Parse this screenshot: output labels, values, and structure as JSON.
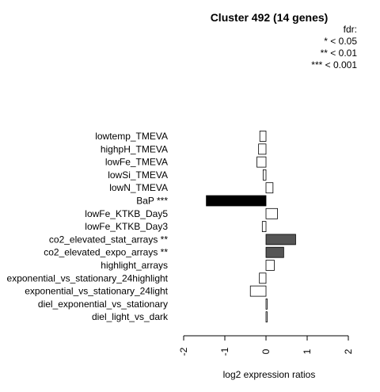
{
  "chart_data": {
    "type": "bar",
    "orientation": "horizontal",
    "title": "Cluster 492 (14 genes)",
    "xlabel": "log2 expression ratios",
    "xlim": [
      -2,
      2
    ],
    "xticks": [
      "-2",
      "-1",
      "0",
      "1",
      "2"
    ],
    "legend": {
      "placement": "top-right",
      "lines": [
        "fdr:",
        "* < 0.05",
        "** < 0.01",
        "*** < 0.001"
      ]
    },
    "categories": [
      "lowtemp_TMEVA",
      "highpH_TMEVA",
      "lowFe_TMEVA",
      "lowSi_TMEVA",
      "lowN_TMEVA",
      "BaP ***",
      "lowFe_KTKB_Day5",
      "lowFe_KTKB_Day3",
      "co2_elevated_stat_arrays **",
      "co2_elevated_expo_arrays **",
      "highlight_arrays",
      "exponential_vs_stationary_24highlight",
      "exponential_vs_stationary_24light",
      "diel_exponential_vs_stationary",
      "diel_light_vs_dark"
    ],
    "values": [
      -0.15,
      -0.18,
      -0.22,
      -0.07,
      0.17,
      -1.45,
      0.28,
      -0.09,
      0.72,
      0.43,
      0.2,
      -0.16,
      -0.38,
      0.02,
      0.02
    ],
    "fill_colors": [
      "#ffffff",
      "#ffffff",
      "#ffffff",
      "#ffffff",
      "#ffffff",
      "#000000",
      "#ffffff",
      "#ffffff",
      "#555555",
      "#555555",
      "#ffffff",
      "#ffffff",
      "#ffffff",
      "#ffffff",
      "#ffffff"
    ]
  }
}
